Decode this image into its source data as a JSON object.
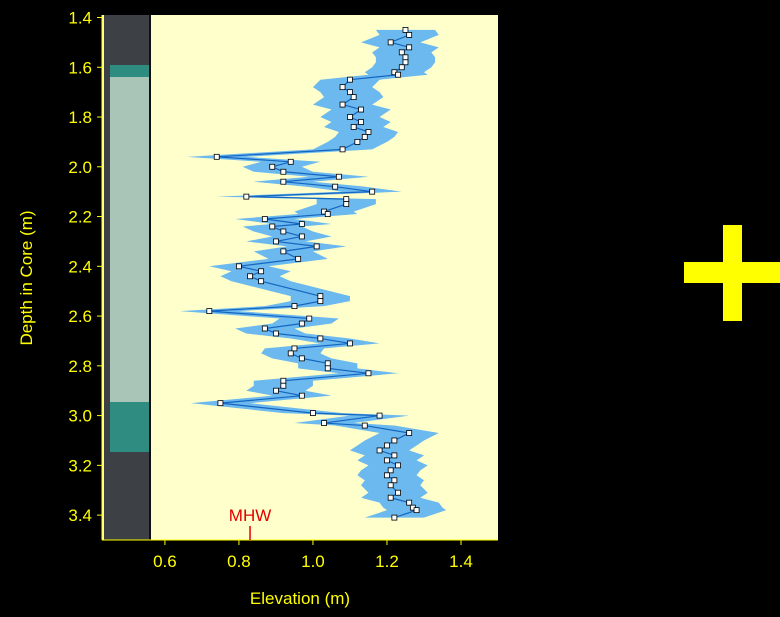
{
  "chart_data": {
    "type": "line",
    "xlabel": "Elevation (m)",
    "ylabel": "Depth in Core (m)",
    "xlim": [
      0.43,
      1.5
    ],
    "ylim": [
      1.39,
      3.5
    ],
    "y_inverted": true,
    "xticks": [
      0.6,
      0.8,
      {
        "value": 1,
        "label": "1.0"
      },
      1.2,
      1.4
    ],
    "yticks": [
      1.4,
      1.6,
      1.8,
      {
        "value": 2,
        "label": "2.0"
      },
      2.2,
      2.4,
      2.6,
      2.8,
      {
        "value": 3,
        "label": "3.0"
      },
      3.2,
      3.4
    ],
    "annotations": [
      {
        "text": "MHW",
        "x": 0.83
      }
    ],
    "series": [
      {
        "color": "#1565c0",
        "band_color": "#6bb9ee",
        "error": 0.08,
        "depth": [
          1.45,
          1.47,
          1.5,
          1.52,
          1.54,
          1.56,
          1.58,
          1.6,
          1.62,
          1.63,
          1.65,
          1.68,
          1.7,
          1.72,
          1.75,
          1.77,
          1.8,
          1.82,
          1.84,
          1.86,
          1.88,
          1.9,
          1.93,
          1.96,
          1.98,
          2.0,
          2.02,
          2.04,
          2.06,
          2.08,
          2.1,
          2.12,
          2.13,
          2.15,
          2.18,
          2.19,
          2.21,
          2.23,
          2.24,
          2.26,
          2.28,
          2.3,
          2.32,
          2.34,
          2.37,
          2.4,
          2.42,
          2.44,
          2.46,
          2.52,
          2.54,
          2.56,
          2.58,
          2.61,
          2.63,
          2.65,
          2.67,
          2.69,
          2.71,
          2.73,
          2.75,
          2.77,
          2.79,
          2.81,
          2.83,
          2.86,
          2.88,
          2.9,
          2.92,
          2.95,
          2.99,
          3.0,
          3.03,
          3.04,
          3.07,
          3.1,
          3.12,
          3.14,
          3.16,
          3.18,
          3.2,
          3.22,
          3.24,
          3.26,
          3.28,
          3.31,
          3.33,
          3.35,
          3.37,
          3.38,
          3.41
        ],
        "values": [
          1.25,
          1.26,
          1.21,
          1.26,
          1.24,
          1.25,
          1.25,
          1.24,
          1.22,
          1.23,
          1.1,
          1.08,
          1.1,
          1.11,
          1.08,
          1.13,
          1.1,
          1.13,
          1.11,
          1.15,
          1.14,
          1.12,
          1.08,
          0.74,
          0.94,
          0.89,
          0.92,
          1.07,
          0.92,
          1.06,
          1.16,
          0.82,
          1.09,
          1.09,
          1.03,
          1.04,
          0.87,
          0.97,
          0.89,
          0.92,
          0.97,
          0.9,
          1.01,
          0.92,
          0.96,
          0.8,
          0.86,
          0.83,
          0.86,
          1.02,
          1.02,
          0.95,
          0.72,
          0.99,
          0.97,
          0.87,
          0.9,
          1.02,
          1.1,
          0.95,
          0.94,
          0.97,
          1.04,
          1.04,
          1.15,
          0.92,
          0.92,
          0.9,
          0.97,
          0.75,
          1.0,
          1.18,
          1.03,
          1.14,
          1.26,
          1.22,
          1.2,
          1.18,
          1.22,
          1.2,
          1.23,
          1.21,
          1.2,
          1.22,
          1.21,
          1.23,
          1.21,
          1.26,
          1.27,
          1.28,
          1.22
        ]
      }
    ]
  }
}
